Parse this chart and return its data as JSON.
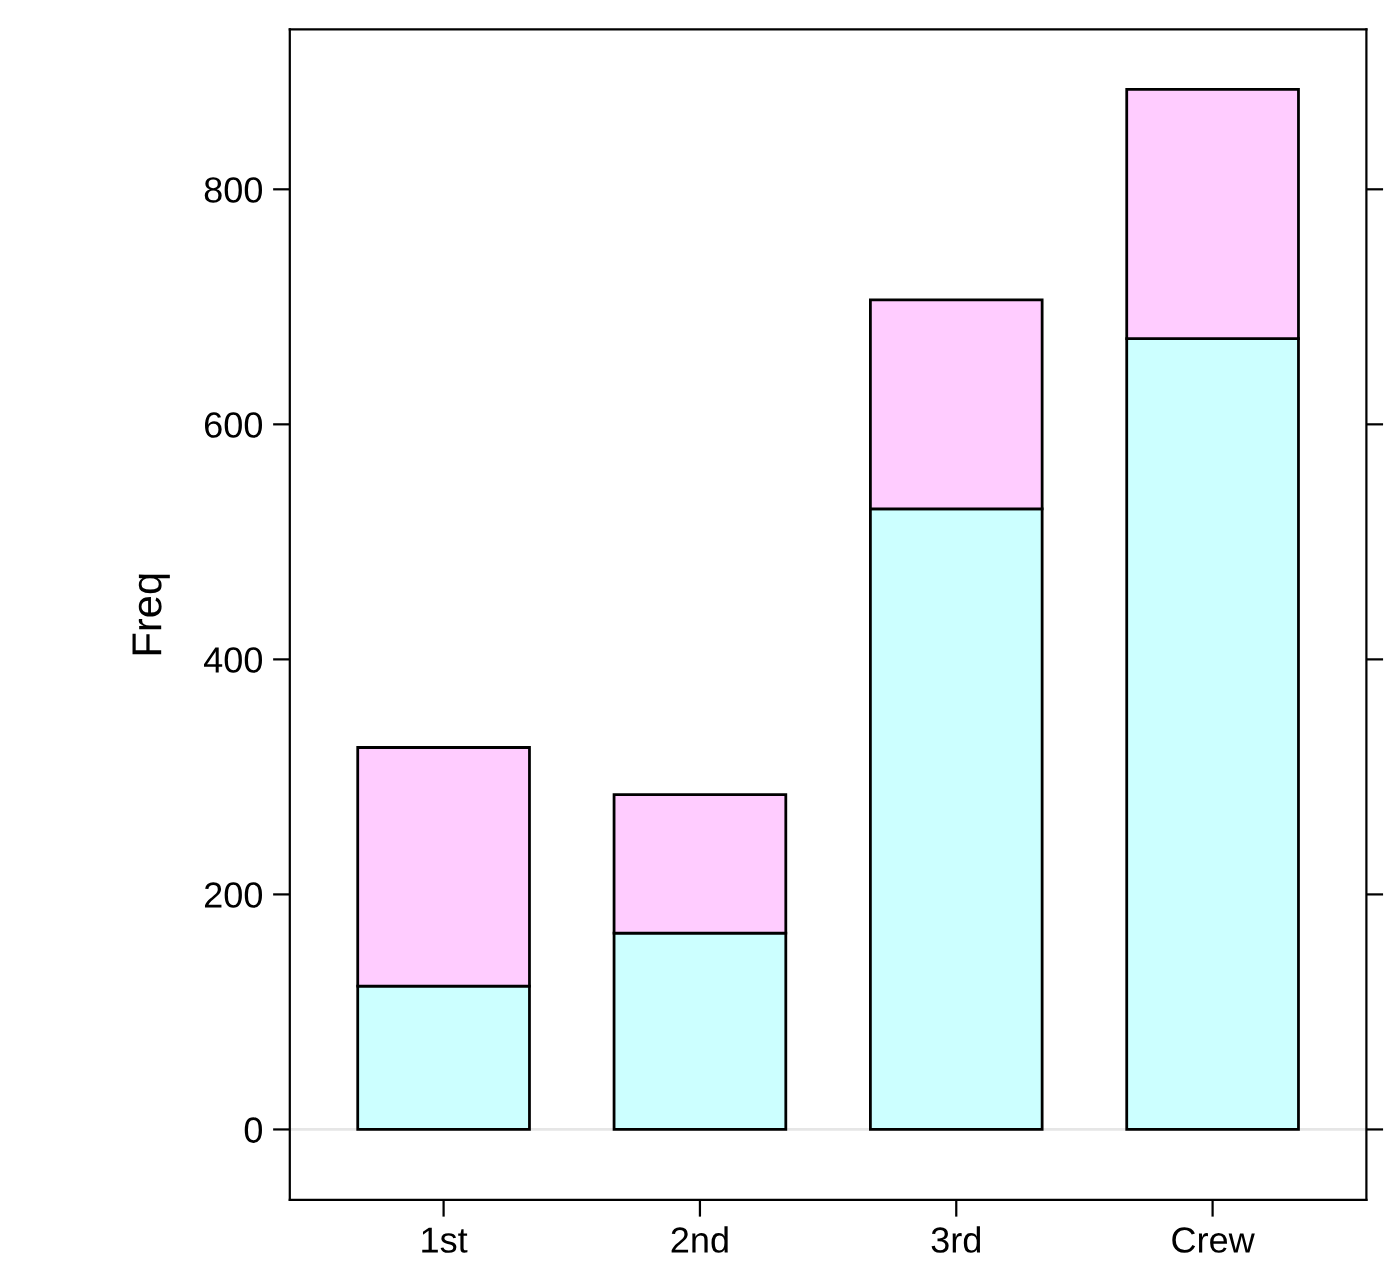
{
  "chart_data": {
    "type": "bar",
    "stacked": true,
    "ylabel": "Freq",
    "categories": [
      "1st",
      "2nd",
      "3rd",
      "Crew"
    ],
    "series": [
      {
        "color": "#ccffff",
        "values": [
          122,
          167,
          528,
          673
        ]
      },
      {
        "color": "#ffccff",
        "values": [
          203,
          118,
          178,
          212
        ]
      }
    ],
    "ylim": [
      -60,
      936
    ],
    "yticks": [
      0,
      200,
      400,
      600,
      800
    ],
    "ref_lines": [
      {
        "axis": "y",
        "value": 0,
        "color": "#e6e6e6"
      }
    ],
    "grid": false,
    "legend": false
  }
}
